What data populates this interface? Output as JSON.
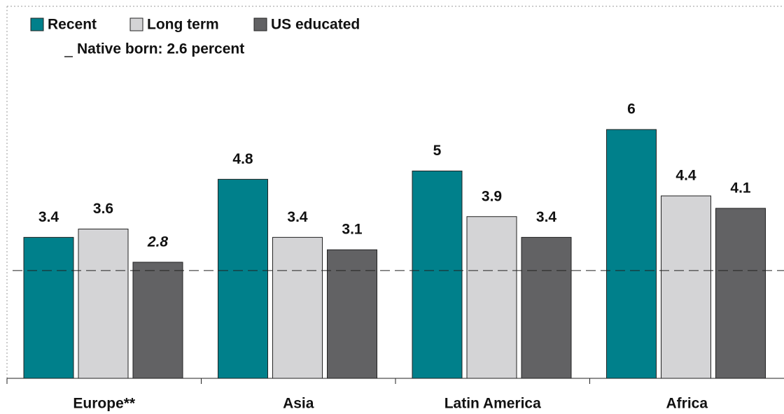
{
  "chart_data": {
    "type": "bar",
    "categories": [
      "Europe**",
      "Asia",
      "Latin America",
      "Africa"
    ],
    "series": [
      {
        "name": "Recent",
        "color": "#00808b",
        "values": [
          3.4,
          4.8,
          5.0,
          6.0
        ]
      },
      {
        "name": "Long term",
        "color": "#d4d4d6",
        "values": [
          3.6,
          3.4,
          3.9,
          4.4
        ]
      },
      {
        "name": "US educated",
        "color": "#626264",
        "values": [
          2.8,
          3.1,
          3.4,
          4.1
        ]
      }
    ],
    "reference": {
      "name": "Native born: 2.6 percent",
      "value": 2.6
    }
  }
}
